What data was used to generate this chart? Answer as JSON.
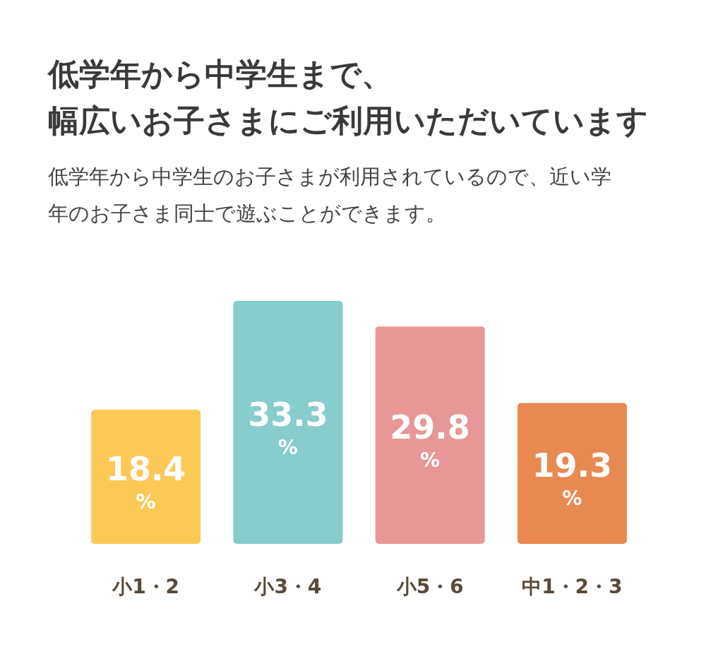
{
  "chart_data": {
    "type": "bar",
    "title": "低学年から中学生まで、幅広いお子さまにご利用いただいています",
    "subtitle": "低学年から中学生のお子さまが利用されているので、近い学年のお子さま同士で遊ぶことができます。",
    "categories": [
      "小1・2",
      "小3・4",
      "小5・6",
      "中1・2・3"
    ],
    "values": [
      18.4,
      33.3,
      29.8,
      19.3
    ],
    "colors": [
      "#fdc956",
      "#86cdcc",
      "#e79797",
      "#e88952"
    ],
    "value_labels": [
      "18.4%",
      "33.3%",
      "29.8%",
      "19.3%"
    ]
  }
}
